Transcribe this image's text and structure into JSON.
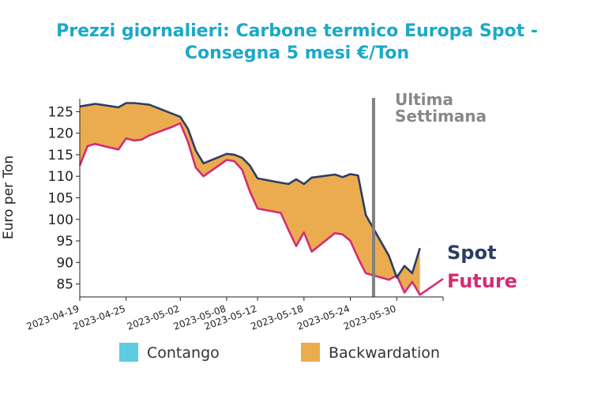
{
  "title_line1": "Prezzi giornalieri: Carbone termico Europa Spot -",
  "title_line2": "Consegna 5 mesi €/Ton",
  "ylabel": "Euro per Ton",
  "annotation_line1": "Ultima",
  "annotation_line2": "Settimana",
  "legend": {
    "contango": "Contango",
    "backwardation": "Backwardation"
  },
  "end_labels": {
    "spot": "Spot",
    "future": "Future"
  },
  "colors": {
    "title": "#1aa9c9",
    "spot": "#2c3e63",
    "future": "#d42c74",
    "backwardation": "#ebac4f",
    "contango": "#5ecbe0",
    "marker": "#808080"
  },
  "chart_data": {
    "type": "area",
    "x_ticks": [
      "2023-04-19",
      "2023-04-25",
      "2023-05-02",
      "2023-05-08",
      "2023-05-12",
      "2023-05-18",
      "2023-05-24",
      "2023-05-30"
    ],
    "y_ticks": [
      85,
      90,
      95,
      100,
      105,
      110,
      115,
      120,
      125
    ],
    "ylim": [
      82,
      128
    ],
    "marker_date": "2023-05-27",
    "series": [
      {
        "name": "Spot",
        "points": [
          [
            "2023-04-19",
            126.2
          ],
          [
            "2023-04-20",
            126.5
          ],
          [
            "2023-04-21",
            126.8
          ],
          [
            "2023-04-24",
            126.0
          ],
          [
            "2023-04-25",
            127.0
          ],
          [
            "2023-04-26",
            127.0
          ],
          [
            "2023-04-27",
            126.8
          ],
          [
            "2023-04-28",
            126.6
          ],
          [
            "2023-05-01",
            124.5
          ],
          [
            "2023-05-02",
            123.8
          ],
          [
            "2023-05-03",
            121.0
          ],
          [
            "2023-05-04",
            116.0
          ],
          [
            "2023-05-05",
            113.0
          ],
          [
            "2023-05-08",
            115.2
          ],
          [
            "2023-05-09",
            115.0
          ],
          [
            "2023-05-10",
            114.3
          ],
          [
            "2023-05-11",
            112.5
          ],
          [
            "2023-05-12",
            109.5
          ],
          [
            "2023-05-15",
            108.5
          ],
          [
            "2023-05-16",
            108.2
          ],
          [
            "2023-05-17",
            109.3
          ],
          [
            "2023-05-18",
            108.2
          ],
          [
            "2023-05-19",
            109.7
          ],
          [
            "2023-05-22",
            110.4
          ],
          [
            "2023-05-23",
            109.8
          ],
          [
            "2023-05-24",
            110.5
          ],
          [
            "2023-05-25",
            110.2
          ],
          [
            "2023-05-26",
            101.0
          ],
          [
            "2023-05-29",
            91.5
          ],
          [
            "2023-05-30",
            86.5
          ],
          [
            "2023-05-31",
            89.2
          ],
          [
            "2023-06-01",
            87.5
          ],
          [
            "2023-06-02",
            93.3
          ]
        ]
      },
      {
        "name": "Future",
        "points": [
          [
            "2023-04-19",
            112.5
          ],
          [
            "2023-04-20",
            117.0
          ],
          [
            "2023-04-21",
            117.5
          ],
          [
            "2023-04-24",
            116.2
          ],
          [
            "2023-04-25",
            118.8
          ],
          [
            "2023-04-26",
            118.3
          ],
          [
            "2023-04-27",
            118.5
          ],
          [
            "2023-04-28",
            119.5
          ],
          [
            "2023-05-01",
            121.5
          ],
          [
            "2023-05-02",
            122.3
          ],
          [
            "2023-05-03",
            118.0
          ],
          [
            "2023-05-04",
            112.0
          ],
          [
            "2023-05-05",
            110.0
          ],
          [
            "2023-05-08",
            113.8
          ],
          [
            "2023-05-09",
            113.5
          ],
          [
            "2023-05-10",
            111.5
          ],
          [
            "2023-05-11",
            106.5
          ],
          [
            "2023-05-12",
            102.5
          ],
          [
            "2023-05-15",
            101.5
          ],
          [
            "2023-05-16",
            97.5
          ],
          [
            "2023-05-17",
            93.8
          ],
          [
            "2023-05-18",
            97.0
          ],
          [
            "2023-05-19",
            92.5
          ],
          [
            "2023-05-22",
            96.8
          ],
          [
            "2023-05-23",
            96.5
          ],
          [
            "2023-05-24",
            95.0
          ],
          [
            "2023-05-25",
            91.0
          ],
          [
            "2023-05-26",
            87.5
          ],
          [
            "2023-05-29",
            86.0
          ],
          [
            "2023-05-30",
            87.0
          ],
          [
            "2023-05-31",
            83.0
          ],
          [
            "2023-06-01",
            85.5
          ],
          [
            "2023-06-02",
            82.5
          ],
          [
            "2023-06-05",
            86.2
          ]
        ]
      }
    ],
    "grid": false,
    "legend_placement": "bottom"
  }
}
